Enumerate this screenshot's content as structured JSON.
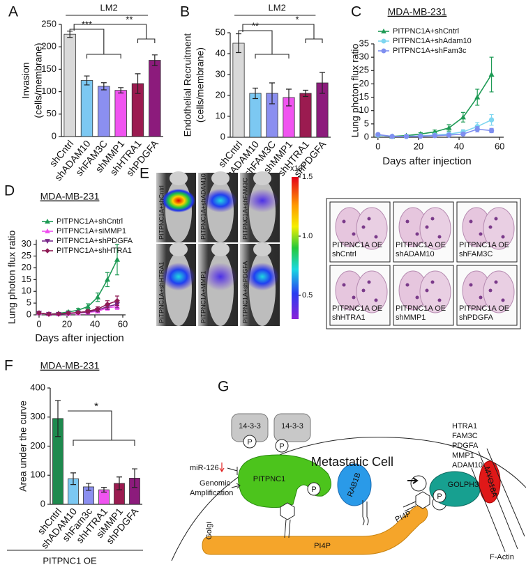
{
  "chart_data": [
    {
      "type": "bar",
      "panel": "A",
      "ylabel": [
        "Invasion",
        "(cells/membrane)"
      ],
      "categories": [
        "shCntrl",
        "shADAM10",
        "shFAM3C",
        "shMMP1",
        "shHTRA1",
        "shPDGFA"
      ],
      "values": [
        228,
        125,
        112,
        103,
        118,
        170
      ],
      "errors": [
        7,
        10,
        8,
        6,
        22,
        12
      ],
      "colors": [
        "#d9d9d9",
        "#7cc8f2",
        "#8b8ff0",
        "#f054f0",
        "#9b1b50",
        "#8c1b7c"
      ],
      "ylim": [
        0,
        250
      ],
      "yticks": [
        0,
        50,
        100,
        150,
        200,
        250
      ],
      "annotations": [
        "LM2",
        "***",
        "**"
      ]
    },
    {
      "type": "bar",
      "panel": "B",
      "ylabel": [
        "Endothelial Recruitment",
        "(cells/membrane)"
      ],
      "categories": [
        "shCntrl",
        "shADAM10",
        "shFAM3C",
        "shMMP1",
        "shHTRA1",
        "shPDGFA"
      ],
      "values": [
        45,
        21,
        21,
        19,
        21,
        26
      ],
      "errors": [
        4.5,
        2.5,
        5,
        4,
        1.5,
        5
      ],
      "colors": [
        "#d9d9d9",
        "#7cc8f2",
        "#8b8ff0",
        "#f054f0",
        "#9b1b50",
        "#8c1b7c"
      ],
      "ylim": [
        0,
        50
      ],
      "yticks": [
        0,
        10,
        20,
        30,
        40,
        50
      ],
      "annotations": [
        "LM2",
        "**",
        "*"
      ]
    },
    {
      "type": "line",
      "panel": "C",
      "title": "MDA-MB-231",
      "xlabel": "Days after injection",
      "ylabel": [
        "Lung photon flux ratio"
      ],
      "x": [
        0,
        7,
        14,
        21,
        28,
        35,
        42,
        49,
        56
      ],
      "xlim": [
        -2,
        62
      ],
      "xticks": [
        0,
        20,
        40,
        60
      ],
      "ylim": [
        0,
        35
      ],
      "yticks": [
        0,
        5,
        10,
        15,
        20,
        25,
        30,
        35
      ],
      "series": [
        {
          "name": "PITPNC1A+shCntrl",
          "color": "#1e9a55",
          "marker": "triangle",
          "values": [
            0.8,
            0.3,
            0.6,
            1.2,
            2,
            3.5,
            7.5,
            15,
            23.5
          ],
          "errors": [
            0.5,
            0.2,
            0.3,
            0.5,
            0.7,
            1.2,
            1.8,
            3,
            6.5
          ]
        },
        {
          "name": "PITPNC1A+shAdam10",
          "color": "#7fd6f0",
          "marker": "circle",
          "values": [
            0.8,
            0.3,
            0.3,
            0.5,
            0.8,
            1.2,
            2,
            4,
            6.5
          ],
          "errors": [
            0.4,
            0.2,
            0.2,
            0.3,
            0.4,
            0.5,
            0.8,
            1.5,
            2
          ]
        },
        {
          "name": "PITPNC1A+shFam3c",
          "color": "#7f8ff0",
          "marker": "circle",
          "values": [
            1,
            0.3,
            0.3,
            0.4,
            0.6,
            0.8,
            1.2,
            3,
            2.5
          ],
          "errors": [
            0.5,
            0.2,
            0.2,
            0.3,
            0.3,
            0.4,
            0.5,
            1,
            0.8
          ]
        }
      ]
    },
    {
      "type": "line",
      "panel": "D",
      "title": "MDA-MB-231",
      "xlabel": "Days after injection",
      "ylabel": [
        "Lung photon flux ratio"
      ],
      "x": [
        0,
        7,
        14,
        21,
        28,
        35,
        42,
        49,
        56
      ],
      "xlim": [
        -2,
        62
      ],
      "xticks": [
        0,
        20,
        40,
        60
      ],
      "ylim": [
        0,
        32
      ],
      "yticks": [
        0,
        5,
        10,
        15,
        20,
        25,
        30
      ],
      "series": [
        {
          "name": "PITPNC1A+shCntrl",
          "color": "#1e9a55",
          "marker": "triangle",
          "values": [
            0.8,
            0.3,
            0.6,
            1.2,
            2,
            3.5,
            7.5,
            15,
            23.5
          ],
          "errors": [
            0.5,
            0.2,
            0.3,
            0.5,
            0.7,
            1.2,
            1.8,
            3,
            6.5
          ]
        },
        {
          "name": "PITPNC1A+siMMP1",
          "color": "#f04ef0",
          "marker": "triangle",
          "values": [
            0.8,
            0.3,
            0.3,
            0.5,
            0.8,
            1,
            1.5,
            3,
            3.5
          ],
          "errors": [
            0.4,
            0.2,
            0.2,
            0.3,
            0.3,
            0.4,
            0.6,
            1,
            1.2
          ]
        },
        {
          "name": "PITPNC1A+shPDGFA",
          "color": "#7a2a8a",
          "marker": "triangle-down",
          "values": [
            0.8,
            0.3,
            0.3,
            0.6,
            0.9,
            1.2,
            2,
            3.5,
            4.5
          ],
          "errors": [
            0.4,
            0.2,
            0.2,
            0.3,
            0.4,
            0.5,
            0.7,
            1.2,
            1.5
          ]
        },
        {
          "name": "PITPNC1A+shHTRA1",
          "color": "#8e1b55",
          "marker": "diamond",
          "values": [
            0.8,
            0.3,
            0.4,
            0.7,
            1,
            1.5,
            2.5,
            4.5,
            6
          ],
          "errors": [
            0.4,
            0.2,
            0.2,
            0.3,
            0.4,
            0.6,
            0.9,
            1.5,
            2
          ]
        }
      ]
    },
    {
      "type": "bar",
      "panel": "F",
      "title": "MDA-MB-231",
      "xlabel": "PITPNC1 OE",
      "ylabel": [
        "Area under the curve"
      ],
      "categories": [
        "shCntrl",
        "shADAM10",
        "shFam3c",
        "shHTRA1",
        "siMMP1",
        "shPDGFA"
      ],
      "values": [
        295,
        88,
        60,
        50,
        72,
        90
      ],
      "errors": [
        62,
        20,
        12,
        8,
        22,
        32
      ],
      "colors": [
        "#1e8a4e",
        "#7cc8f2",
        "#8b8ff0",
        "#f054f0",
        "#9b1b50",
        "#8c1b7c"
      ],
      "ylim": [
        0,
        400
      ],
      "yticks": [
        0,
        100,
        200,
        300,
        400
      ],
      "annotations": [
        "*"
      ]
    }
  ],
  "panel_e": {
    "label": "E",
    "mice": [
      "PITPNC1A+shCntrl",
      "PITPNC1A+shADAM10",
      "PITPNC1A+shFAM3C",
      "PITPNC1A+shHTRA1",
      "PITPNC1A+MMP1",
      "PITPNC1A+shPDGFA"
    ],
    "colorbar_unit": "x10",
    "colorbar_exponent": "7",
    "clim": [
      0.3,
      1.5
    ],
    "colorbar_ticks": [
      1.5,
      {
        "value": 1.0,
        "label": "1.0"
      },
      0.5
    ],
    "histology": [
      [
        "PITPNC1A OE",
        "shCntrl"
      ],
      [
        "PITPNC1A OE",
        "shADAM10"
      ],
      [
        "PITPNC1A OE",
        "shFAM3C"
      ],
      [
        "PITPNC1A OE",
        "shHTRA1"
      ],
      [
        "PITPNC1A OE",
        "shMMP1"
      ],
      [
        "PITPNC1A OE",
        "shPDGFA"
      ]
    ]
  },
  "panel_g": {
    "label": "G",
    "cell": "Metastatic Cell",
    "secreted": [
      "HTRA1",
      "FAM3C",
      "PDGFA",
      "MMP1",
      "ADAM10"
    ],
    "adaptor": [
      "14-3-3",
      "14-3-3"
    ],
    "phospho": [
      "P",
      "P",
      "P",
      "P"
    ],
    "mirna": "miR-126",
    "amplification": [
      "Genomic",
      "Amplification"
    ],
    "pitpnc1": "PITPNC1",
    "rab1b": "RAB1B",
    "golgi": "Golgi",
    "pi4p": [
      "PI4P",
      "PI4P"
    ],
    "golph3": "GOLPH3",
    "myo18a": "MYO18A",
    "factin": "F-Actin"
  }
}
